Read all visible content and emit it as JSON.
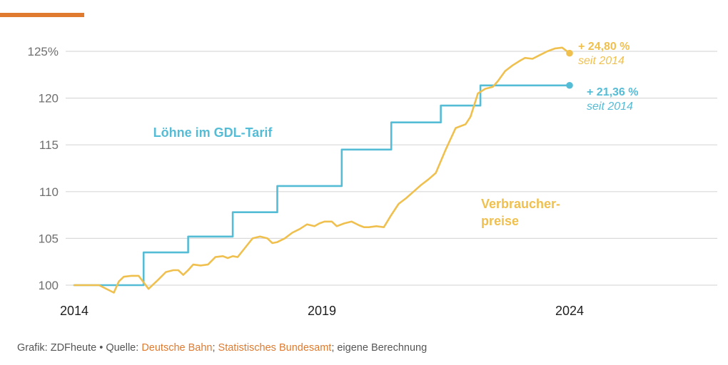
{
  "colors": {
    "wages": "#55bcd6",
    "prices": "#f0c04f",
    "accent": "#e07a2e",
    "grid": "#d9d9d9",
    "tick_text": "#6f6f6f",
    "axis_text": "#1e1e1e"
  },
  "chart_data": {
    "type": "line",
    "title": "",
    "xlabel": "",
    "ylabel": "",
    "xlim": [
      2014,
      2026.6
    ],
    "ylim": [
      100,
      125
    ],
    "x_ticks": [
      "2014",
      "2019",
      "2024"
    ],
    "y_ticks": [
      {
        "value": 100,
        "label": "100"
      },
      {
        "value": 105,
        "label": "105"
      },
      {
        "value": 110,
        "label": "110"
      },
      {
        "value": 115,
        "label": "115"
      },
      {
        "value": 120,
        "label": "120"
      },
      {
        "value": 125,
        "label": "125%"
      }
    ],
    "grid": true,
    "series": [
      {
        "name": "Löhne im GDL-Tarif",
        "key": "wages",
        "shape": "step",
        "x": [
          2014.0,
          2015.4,
          2015.4,
          2016.3,
          2016.3,
          2017.2,
          2017.2,
          2018.1,
          2018.1,
          2019.4,
          2019.4,
          2020.4,
          2020.4,
          2021.4,
          2021.4,
          2022.2,
          2022.2,
          2023.4,
          2023.4,
          2024.0
        ],
        "y": [
          100,
          100,
          103.5,
          103.5,
          105.2,
          105.2,
          107.8,
          107.8,
          110.6,
          110.6,
          114.5,
          114.5,
          117.4,
          117.4,
          119.2,
          119.2,
          121.36,
          121.36,
          121.36,
          121.36
        ],
        "end_label": {
          "value": "+ 21,36 %",
          "note": "seit 2014"
        }
      },
      {
        "name": "Verbraucher-preise",
        "key": "prices",
        "shape": "line",
        "x": [
          2014.0,
          2014.5,
          2014.8,
          2014.9,
          2015.0,
          2015.15,
          2015.3,
          2015.5,
          2015.7,
          2015.85,
          2016.0,
          2016.1,
          2016.2,
          2016.3,
          2016.4,
          2016.55,
          2016.7,
          2016.85,
          2017.0,
          2017.1,
          2017.2,
          2017.3,
          2017.45,
          2017.6,
          2017.75,
          2017.9,
          2018.0,
          2018.1,
          2018.25,
          2018.4,
          2018.55,
          2018.7,
          2018.85,
          2018.95,
          2019.05,
          2019.2,
          2019.3,
          2019.45,
          2019.6,
          2019.75,
          2019.85,
          2019.95,
          2020.1,
          2020.25,
          2020.4,
          2020.5,
          2020.55,
          2020.7,
          2020.85,
          2021.0,
          2021.15,
          2021.3,
          2021.5,
          2021.7,
          2021.9,
          2022.0,
          2022.15,
          2022.3,
          2022.45,
          2022.55,
          2022.7,
          2022.85,
          2023.0,
          2023.1,
          2023.25,
          2023.4,
          2023.55,
          2023.7,
          2023.85,
          2024.0
        ],
        "y": [
          100.0,
          100.0,
          99.2,
          100.4,
          100.9,
          101.0,
          101.0,
          99.6,
          100.6,
          101.4,
          101.6,
          101.6,
          101.1,
          101.6,
          102.2,
          102.1,
          102.2,
          103.0,
          103.1,
          102.9,
          103.1,
          103.0,
          104.0,
          105.0,
          105.2,
          105.0,
          104.5,
          104.6,
          105.0,
          105.6,
          106.0,
          106.5,
          106.3,
          106.6,
          106.8,
          106.8,
          106.3,
          106.6,
          106.8,
          106.4,
          106.2,
          106.2,
          106.3,
          106.2,
          107.5,
          108.3,
          108.7,
          109.3,
          110.0,
          110.7,
          111.3,
          112.0,
          114.5,
          116.8,
          117.2,
          118.0,
          120.5,
          121.0,
          121.2,
          121.8,
          122.9,
          123.5,
          124.0,
          124.3,
          124.2,
          124.6,
          125.0,
          125.3,
          125.4,
          124.8
        ],
        "end_label": {
          "value": "+ 24,80 %",
          "note": "seit 2014"
        }
      }
    ],
    "annotations": [
      {
        "key": "wages",
        "lines": [
          "Löhne im GDL-Tarif"
        ]
      },
      {
        "key": "prices",
        "lines": [
          "Verbraucher-",
          "preise"
        ]
      }
    ]
  },
  "caption": {
    "prefix": "Grafik: ZDFheute • Quelle: ",
    "source1": "Deutsche Bahn",
    "sep": "; ",
    "source2": "Statistisches Bundesamt",
    "suffix": "; eigene Berechnung"
  }
}
